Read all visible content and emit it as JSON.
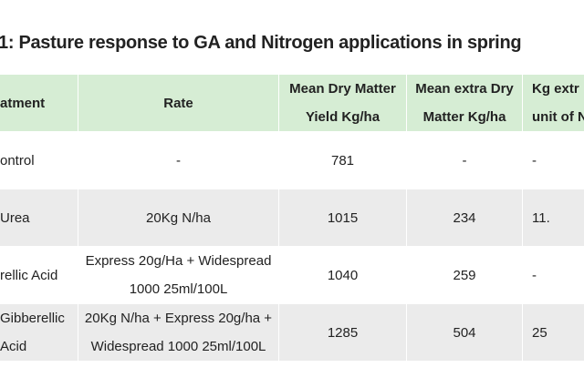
{
  "title": "1: Pasture response to GA and Nitrogen applications in spring",
  "table": {
    "header": [
      "atment",
      "Rate",
      "Mean Dry Matter Yield Kg/ha",
      "Mean extra Dry Matter Kg/ha",
      "Kg extr unit of N"
    ],
    "rows": [
      [
        "ontrol",
        "-",
        "781",
        "-",
        "-"
      ],
      [
        "Urea",
        "20Kg N/ha",
        "1015",
        "234",
        "11."
      ],
      [
        "rellic Acid",
        "Express 20g/Ha + Widespread 1000 25ml/100L",
        "1040",
        "259",
        "-"
      ],
      [
        "Gibberellic Acid",
        "20Kg N/ha + Express 20g/ha + Widespread 1000 25ml/100L",
        "1285",
        "504",
        "25"
      ]
    ]
  }
}
